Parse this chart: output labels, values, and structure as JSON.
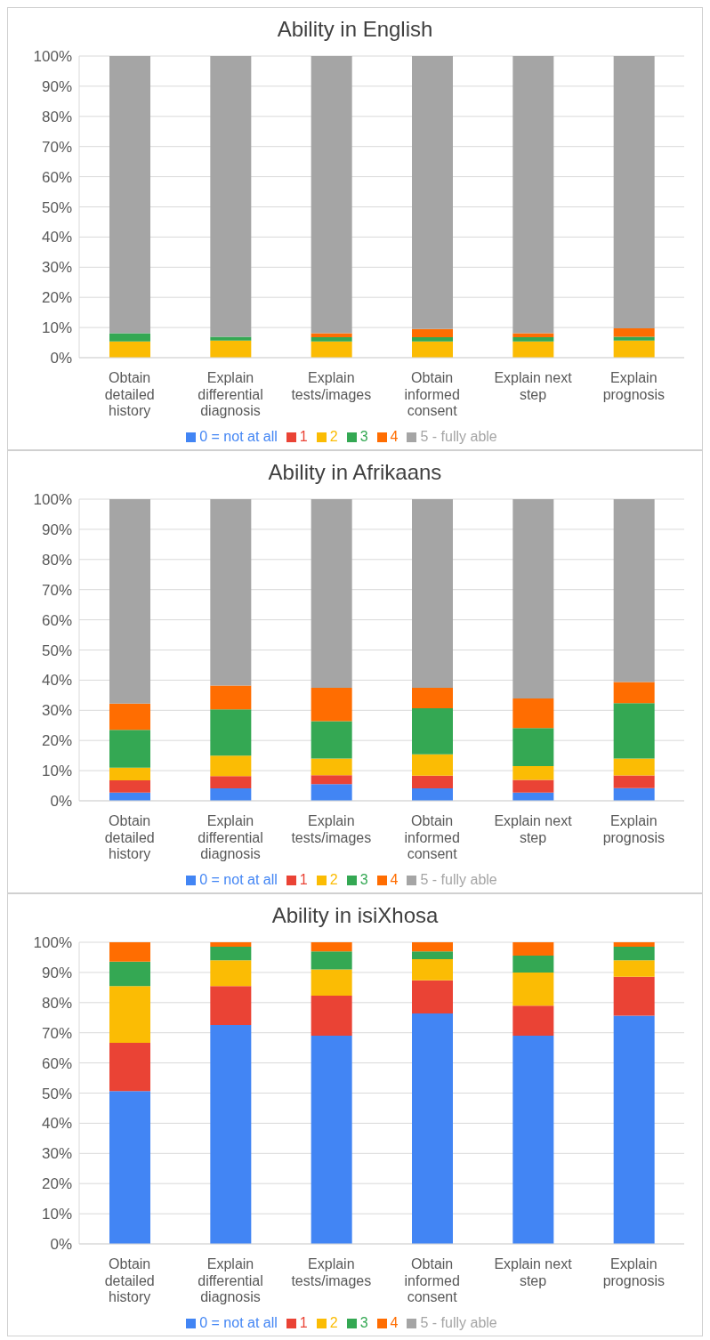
{
  "chart_data": [
    {
      "type": "bar",
      "title": "Ability in English",
      "stacked": true,
      "categories": [
        "Obtain detailed history",
        "Explain differential diagnosis",
        "Explain tests/images",
        "Obtain informed consent",
        "Explain next step",
        "Explain prognosis"
      ],
      "ylim": [
        0,
        100
      ],
      "yticks": [
        {
          "value": 0,
          "label": "0%"
        },
        {
          "value": 10,
          "label": "10%"
        },
        {
          "value": 20,
          "label": "20%"
        },
        {
          "value": 30,
          "label": "30%"
        },
        {
          "value": 40,
          "label": "40%"
        },
        {
          "value": 50,
          "label": "50%"
        },
        {
          "value": 60,
          "label": "60%"
        },
        {
          "value": 70,
          "label": "70%"
        },
        {
          "value": 80,
          "label": "80%"
        },
        {
          "value": 90,
          "label": "90%"
        },
        {
          "value": 100,
          "label": "100%"
        }
      ],
      "grid": "y",
      "legend": "bottom",
      "series": [
        {
          "name": "0 = not at all",
          "color": "#4285f4",
          "values": [
            0,
            0,
            0,
            0,
            0,
            0
          ]
        },
        {
          "name": "1",
          "color": "#ea4335",
          "values": [
            0,
            0,
            0,
            0,
            0,
            0
          ]
        },
        {
          "name": "2",
          "color": "#fbbc04",
          "values": [
            5.4,
            5.7,
            5.4,
            5.4,
            5.4,
            5.7
          ]
        },
        {
          "name": "3",
          "color": "#34a853",
          "values": [
            2.7,
            1.2,
            1.4,
            1.4,
            1.4,
            1.2
          ]
        },
        {
          "name": "4",
          "color": "#ff6d01",
          "values": [
            0,
            0,
            1.3,
            2.7,
            1.3,
            2.8
          ]
        },
        {
          "name": "5 - fully able",
          "color": "#a5a5a5",
          "values": [
            91.9,
            93.1,
            91.9,
            90.5,
            91.9,
            90.3
          ]
        }
      ]
    },
    {
      "type": "bar",
      "title": "Ability in Afrikaans",
      "stacked": true,
      "categories": [
        "Obtain detailed history",
        "Explain differential diagnosis",
        "Explain tests/images",
        "Obtain informed consent",
        "Explain next step",
        "Explain prognosis"
      ],
      "ylim": [
        0,
        100
      ],
      "yticks": [
        {
          "value": 0,
          "label": "0%"
        },
        {
          "value": 10,
          "label": "10%"
        },
        {
          "value": 20,
          "label": "20%"
        },
        {
          "value": 30,
          "label": "30%"
        },
        {
          "value": 40,
          "label": "40%"
        },
        {
          "value": 50,
          "label": "50%"
        },
        {
          "value": 60,
          "label": "60%"
        },
        {
          "value": 70,
          "label": "70%"
        },
        {
          "value": 80,
          "label": "80%"
        },
        {
          "value": 90,
          "label": "90%"
        },
        {
          "value": 100,
          "label": "100%"
        }
      ],
      "grid": "y",
      "legend": "bottom",
      "series": [
        {
          "name": "0 = not at all",
          "color": "#4285f4",
          "values": [
            2.7,
            4.1,
            5.5,
            4.1,
            2.7,
            4.2
          ]
        },
        {
          "name": "1",
          "color": "#ea4335",
          "values": [
            4.1,
            4.1,
            3,
            4.2,
            4.2,
            4.2
          ]
        },
        {
          "name": "2",
          "color": "#fbbc04",
          "values": [
            4.2,
            6.8,
            5.5,
            7.1,
            4.6,
            5.6
          ]
        },
        {
          "name": "3",
          "color": "#34a853",
          "values": [
            12.5,
            15.3,
            12.4,
            15.3,
            12.6,
            18.4
          ]
        },
        {
          "name": "4",
          "color": "#ff6d01",
          "values": [
            8.7,
            7.9,
            11.1,
            6.8,
            9.8,
            7
          ]
        },
        {
          "name": "5 - fully able",
          "color": "#a5a5a5",
          "values": [
            67.8,
            61.8,
            62.5,
            62.5,
            66.1,
            60.6
          ]
        }
      ]
    },
    {
      "type": "bar",
      "title": "Ability in isiXhosa",
      "stacked": true,
      "categories": [
        "Obtain detailed history",
        "Explain differential diagnosis",
        "Explain tests/images",
        "Obtain informed consent",
        "Explain next step",
        "Explain prognosis"
      ],
      "ylim": [
        0,
        100
      ],
      "yticks": [
        {
          "value": 0,
          "label": "0%"
        },
        {
          "value": 10,
          "label": "10%"
        },
        {
          "value": 20,
          "label": "20%"
        },
        {
          "value": 30,
          "label": "30%"
        },
        {
          "value": 40,
          "label": "40%"
        },
        {
          "value": 50,
          "label": "50%"
        },
        {
          "value": 60,
          "label": "60%"
        },
        {
          "value": 70,
          "label": "70%"
        },
        {
          "value": 80,
          "label": "80%"
        },
        {
          "value": 90,
          "label": "90%"
        },
        {
          "value": 100,
          "label": "100%"
        }
      ],
      "grid": "y",
      "legend": "bottom",
      "series": [
        {
          "name": "0 = not at all",
          "color": "#4285f4",
          "values": [
            50.7,
            72.6,
            69,
            76.4,
            69,
            75.7
          ]
        },
        {
          "name": "1",
          "color": "#ea4335",
          "values": [
            16,
            12.9,
            13.3,
            11,
            10,
            12.9
          ]
        },
        {
          "name": "2",
          "color": "#fbbc04",
          "values": [
            18.8,
            8.5,
            8.7,
            7,
            11,
            5.4
          ]
        },
        {
          "name": "3",
          "color": "#34a853",
          "values": [
            8.1,
            4.5,
            6,
            2.6,
            5.6,
            4.5
          ]
        },
        {
          "name": "4",
          "color": "#ff6d01",
          "values": [
            6.4,
            1.5,
            3,
            3,
            4.4,
            1.5
          ]
        },
        {
          "name": "5 - fully able",
          "color": "#a5a5a5",
          "values": [
            0,
            0,
            0,
            0,
            0,
            0
          ]
        }
      ]
    }
  ]
}
